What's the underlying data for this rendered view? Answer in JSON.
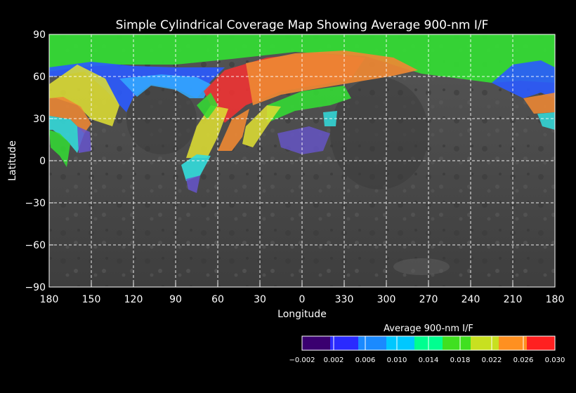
{
  "title": "Simple Cylindrical Coverage Map Showing Average 900-nm I/F",
  "x_axis": {
    "label": "Longitude",
    "ticks": [
      "180",
      "150",
      "120",
      "90",
      "60",
      "30",
      "0",
      "330",
      "300",
      "270",
      "240",
      "210",
      "180"
    ]
  },
  "y_axis": {
    "label": "Latitude",
    "ticks": [
      "90",
      "60",
      "30",
      "0",
      "−30",
      "−60",
      "−90"
    ]
  },
  "legend": {
    "title": "Average 900-nm I/F",
    "ticks": [
      "−0.002",
      "0.002",
      "0.006",
      "0.010",
      "0.014",
      "0.018",
      "0.022",
      "0.026",
      "0.030"
    ],
    "colors": [
      "#3a0070",
      "#2a2aff",
      "#1a8aff",
      "#00c8ff",
      "#00ff90",
      "#40e020",
      "#c8e020",
      "#ff9020",
      "#ff2020"
    ]
  },
  "colors": {
    "background": "#000000",
    "basemap": "#4a4a4a",
    "grid": "#ffffff",
    "green": "#33dd33",
    "blue": "#2a5aff",
    "lightblue": "#33aaff",
    "cyan": "#33dddd",
    "yellow": "#dddd33",
    "orange": "#ee8833",
    "red": "#ee3333",
    "purple": "#6655cc"
  }
}
